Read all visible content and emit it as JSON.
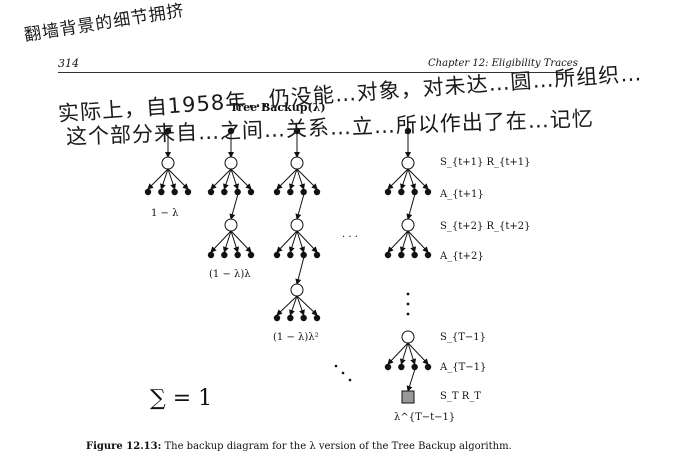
{
  "header": {
    "page_number": "314",
    "running_title": "Chapter 12: Eligibility Traces"
  },
  "figure": {
    "title": "Tree Backup(λ)",
    "weights": {
      "w1": "1 − λ",
      "w2": "(1 − λ)λ",
      "w3": "(1 − λ)λ²",
      "w_final": "λ^{T−t−1}"
    },
    "state_labels": {
      "s1": "S_{t+1} R_{t+1}",
      "a1": "A_{t+1}",
      "s2": "S_{t+2} R_{t+2}",
      "a2": "A_{t+2}",
      "sT1": "S_{T−1}",
      "aT1": "A_{T−1}",
      "sT": "S_T R_T"
    },
    "sum": "∑ = 1",
    "dots": "· · ·"
  },
  "caption": {
    "label": "Figure 12.13:",
    "text": " The backup diagram for the λ version of the Tree Backup algorithm."
  },
  "handwriting": {
    "line1": "翻墙背景的细节拥挤",
    "line2": "实际上，自1958年…仍没能…对象，对未达…圆…所组织…",
    "line3": "这个部分来自…之间…关系…立…所以作出了在…记忆"
  }
}
